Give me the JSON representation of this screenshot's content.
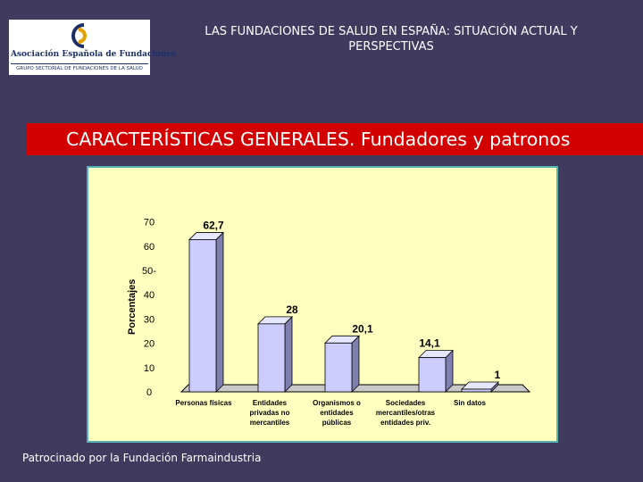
{
  "header": {
    "logo_name": "Asociación Española de Fundaciones",
    "logo_subtitle": "GRUPO SECTORIAL DE FUNDACIONES DE LA SALUD",
    "title": "LAS FUNDACIONES DE SALUD EN ESPAÑA: SITUACIÓN ACTUAL Y PERSPECTIVAS"
  },
  "banner": {
    "text": "CARACTERÍSTICAS GENERALES. Fundadores y patronos"
  },
  "footer": {
    "text": "Patrocinado por la Fundación Farmaindustria"
  },
  "colors": {
    "background": "#3f3a5e",
    "banner": "#d20000",
    "bar": "#ccccff",
    "chart_bg": "#ffffc0"
  },
  "chart_data": {
    "type": "bar",
    "title": "",
    "xlabel": "",
    "ylabel": "Porcentajes",
    "ylim": [
      0,
      70
    ],
    "yticks": [
      "0",
      "10",
      "20",
      "30",
      "40",
      "50",
      "60",
      "70"
    ],
    "categories": [
      [
        "Personas físicas"
      ],
      [
        "Entidades",
        "privadas no",
        "mercantiles"
      ],
      [
        "Organismos o",
        "entidades",
        "públicas"
      ],
      [
        "Sociedades",
        "mercantiles/otras",
        "entidades priv."
      ],
      [
        "Sin datos"
      ]
    ],
    "values": [
      62.7,
      28,
      20.1,
      14.1,
      1
    ],
    "labels": [
      "62,7",
      "28",
      "20,1",
      "14,1",
      "1"
    ]
  }
}
